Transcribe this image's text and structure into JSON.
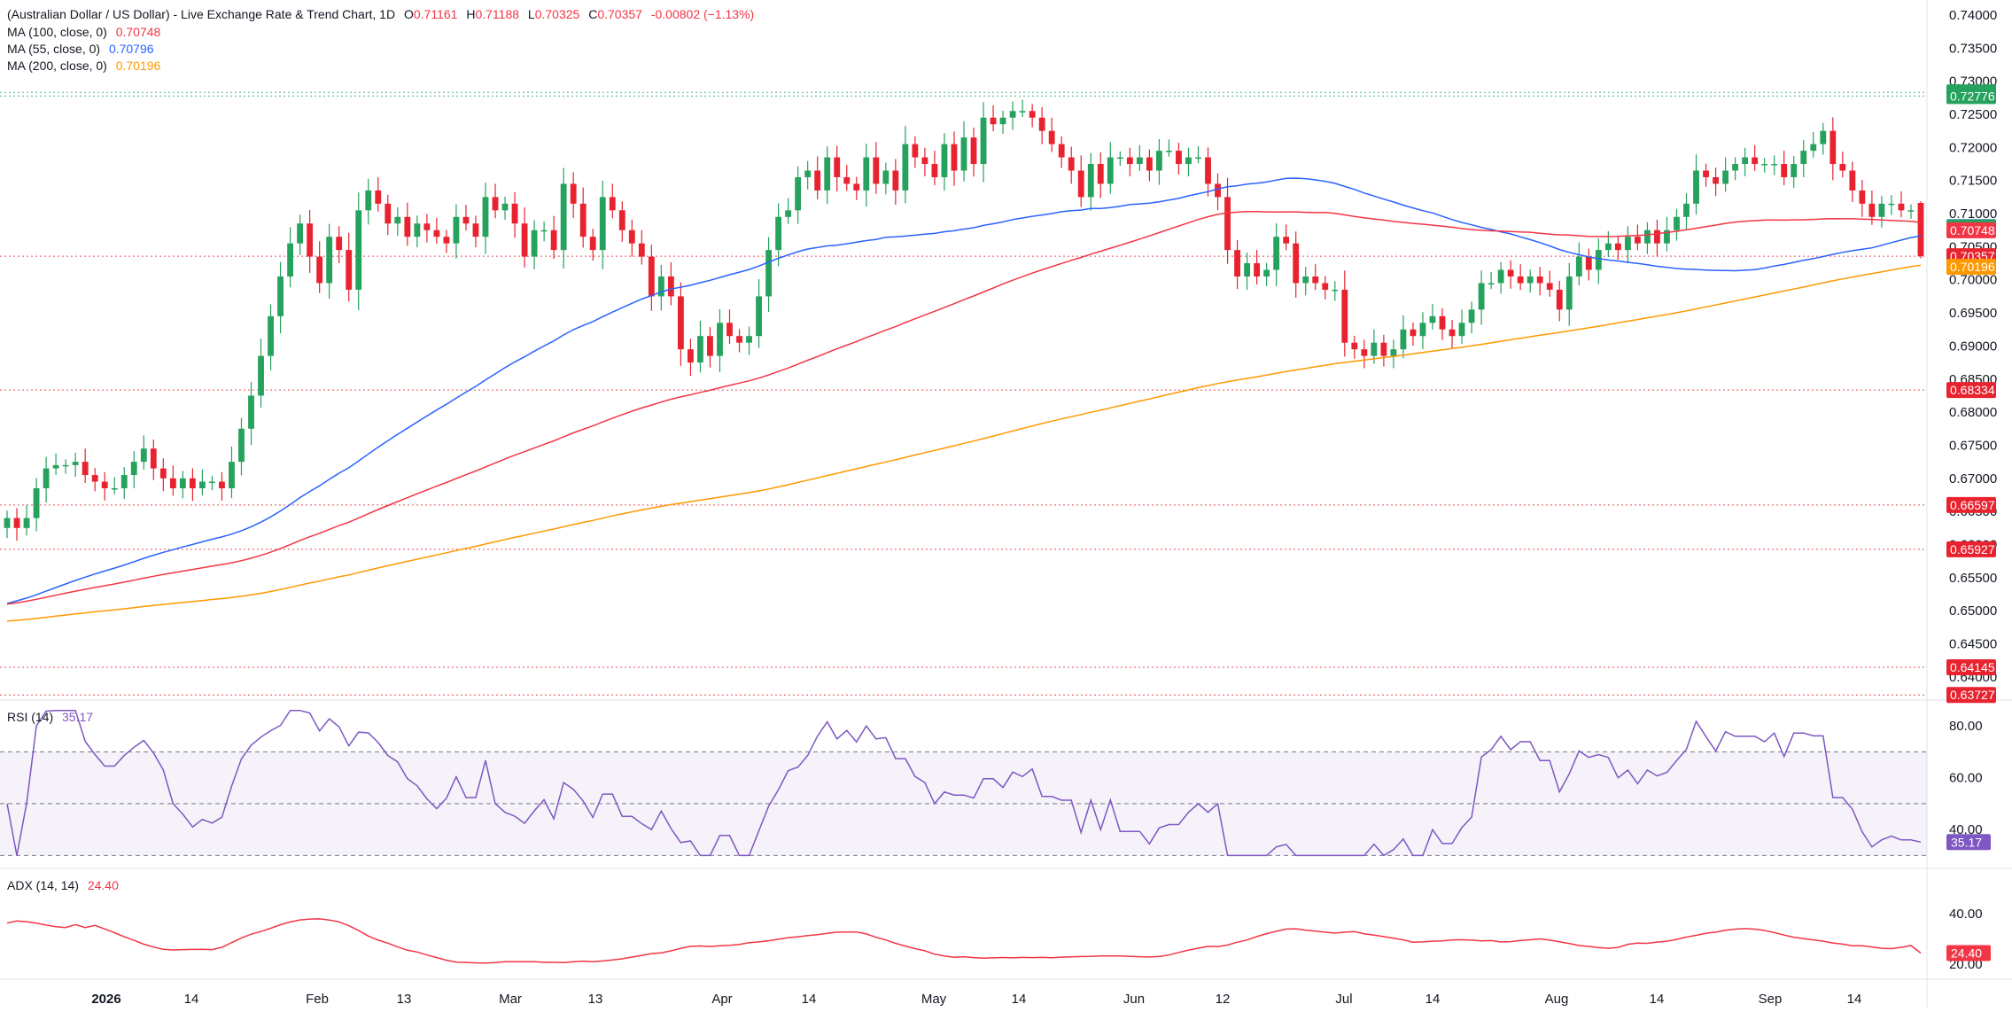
{
  "header": {
    "title": "(Australian Dollar / US Dollar) - Live Exchange Rate & Trend Chart, 1D",
    "open_label": "O",
    "open": "0.71161",
    "high_label": "H",
    "high": "0.71188",
    "low_label": "L",
    "low": "0.70325",
    "close_label": "C",
    "close": "0.70357",
    "change": "-0.00802 (−1.13%)",
    "indicators": [
      {
        "label": "MA (100, close, 0)",
        "value": "0.70748",
        "color": "#f23645"
      },
      {
        "label": "MA (55, close, 0)",
        "value": "0.70796",
        "color": "#2962ff"
      },
      {
        "label": "MA (200, close, 0)",
        "value": "0.70196",
        "color": "#ff9800"
      }
    ]
  },
  "colors": {
    "up": "#26a25e",
    "down": "#e8232f",
    "ma100": "#f23645",
    "ma55": "#2962ff",
    "ma200": "#ff9800",
    "rsi": "#7e57c2",
    "adx": "#f23645",
    "grid_level": "#e8232f",
    "green_level": "#26a25e"
  },
  "chart_data": [
    {
      "type": "candlestick",
      "title": "(Australian Dollar / US Dollar) - Live Exchange Rate & Trend Chart, 1D",
      "y_ticks": [
        "0.74000",
        "0.73500",
        "0.73000",
        "0.72500",
        "0.72000",
        "0.71500",
        "0.71000",
        "0.70500",
        "0.70000",
        "0.69500",
        "0.69000",
        "0.68500",
        "0.68000",
        "0.67500",
        "0.67000",
        "0.66500",
        "0.66000",
        "0.65500",
        "0.65000",
        "0.64500",
        "0.64000"
      ],
      "ylim": [
        0.6365,
        0.7404
      ],
      "x_ticks": [
        "2026",
        "14",
        "Feb",
        "13",
        "Mar",
        "13",
        "Apr",
        "14",
        "May",
        "14",
        "Jun",
        "12",
        "Jul",
        "14",
        "Aug",
        "14",
        "Sep",
        "14"
      ],
      "ohlc_close": [
        0.664,
        0.6625,
        0.664,
        0.6685,
        0.6715,
        0.672,
        0.672,
        0.6725,
        0.6705,
        0.6695,
        0.6685,
        0.6685,
        0.6705,
        0.6725,
        0.6745,
        0.6715,
        0.67,
        0.6685,
        0.67,
        0.6685,
        0.6695,
        0.6695,
        0.6685,
        0.6725,
        0.6775,
        0.6825,
        0.6885,
        0.6945,
        0.7005,
        0.7055,
        0.7085,
        0.7035,
        0.6995,
        0.7065,
        0.7045,
        0.6985,
        0.7105,
        0.7135,
        0.7115,
        0.7085,
        0.7095,
        0.7065,
        0.7085,
        0.7075,
        0.7065,
        0.7055,
        0.7095,
        0.7085,
        0.7065,
        0.7125,
        0.7105,
        0.7115,
        0.7085,
        0.7035,
        0.7075,
        0.7075,
        0.7045,
        0.7145,
        0.7115,
        0.7065,
        0.7045,
        0.7125,
        0.7105,
        0.7075,
        0.7055,
        0.7035,
        0.6975,
        0.7005,
        0.6975,
        0.6895,
        0.6875,
        0.6915,
        0.6885,
        0.6935,
        0.6915,
        0.6905,
        0.6915,
        0.6975,
        0.7045,
        0.7095,
        0.7105,
        0.7155,
        0.7165,
        0.7135,
        0.7185,
        0.7155,
        0.7145,
        0.7135,
        0.7185,
        0.7145,
        0.7165,
        0.7135,
        0.7205,
        0.7185,
        0.7175,
        0.7155,
        0.7205,
        0.7165,
        0.7215,
        0.7175,
        0.7245,
        0.7235,
        0.7245,
        0.7255,
        0.7255,
        0.7245,
        0.7225,
        0.7205,
        0.7185,
        0.7165,
        0.7125,
        0.7175,
        0.7145,
        0.7185,
        0.7185,
        0.7175,
        0.7185,
        0.7165,
        0.7195,
        0.7195,
        0.7175,
        0.7185,
        0.7185,
        0.7145,
        0.7125,
        0.7045,
        0.7005,
        0.7025,
        0.7005,
        0.7015,
        0.7065,
        0.7055,
        0.6995,
        0.7005,
        0.6995,
        0.6985,
        0.6985,
        0.6905,
        0.6895,
        0.6885,
        0.6905,
        0.6885,
        0.6895,
        0.6925,
        0.6915,
        0.6935,
        0.6945,
        0.6925,
        0.6915,
        0.6935,
        0.6955,
        0.6995,
        0.6995,
        0.7015,
        0.7005,
        0.6995,
        0.7005,
        0.6995,
        0.6985,
        0.6955,
        0.7005,
        0.7035,
        0.7015,
        0.7045,
        0.7055,
        0.7045,
        0.7065,
        0.7055,
        0.7075,
        0.7055,
        0.7075,
        0.7095,
        0.7115,
        0.7165,
        0.7155,
        0.7145,
        0.7165,
        0.7175,
        0.7185,
        0.7175,
        0.7175,
        0.7175,
        0.7155,
        0.7175,
        0.7195,
        0.7205,
        0.7225,
        0.7175,
        0.7165,
        0.7135,
        0.7115,
        0.7095,
        0.7115,
        0.7115,
        0.7105,
        0.7105,
        0.7036
      ],
      "last_close": 0.70357,
      "series": [
        {
          "name": "MA (100, close, 0)",
          "last": 0.70748
        },
        {
          "name": "MA (55, close, 0)",
          "last": 0.70796
        },
        {
          "name": "MA (200, close, 0)",
          "last": 0.70196
        }
      ],
      "price_labels": [
        {
          "text": "0.72831",
          "value": 0.72831,
          "color": "#26a25e"
        },
        {
          "text": "0.72776",
          "value": 0.72776,
          "color": "#26a25e"
        },
        {
          "text": "0.70796",
          "value": 0.70796,
          "color": "#2962ff"
        },
        {
          "text": "0.70791",
          "value": 0.70791,
          "color": "#26a25e"
        },
        {
          "text": "0.70748",
          "value": 0.70748,
          "color": "#f23645"
        },
        {
          "text": "0.70357",
          "value": 0.70357,
          "color": "#e8232f"
        },
        {
          "text": "0.70196",
          "value": 0.70196,
          "color": "#ff9800"
        },
        {
          "text": "0.68334",
          "value": 0.68334,
          "color": "#e8232f"
        },
        {
          "text": "0.66597",
          "value": 0.66597,
          "color": "#e8232f"
        },
        {
          "text": "0.65927",
          "value": 0.65927,
          "color": "#e8232f"
        },
        {
          "text": "0.64145",
          "value": 0.64145,
          "color": "#e8232f"
        },
        {
          "text": "0.63727",
          "value": 0.63727,
          "color": "#e8232f"
        }
      ]
    },
    {
      "type": "line",
      "title": "RSI (14)",
      "current": "35.17",
      "y_ticks": [
        "80.00",
        "60.00",
        "40.00"
      ],
      "bands": [
        30,
        50,
        70
      ],
      "ylim": [
        25,
        90
      ]
    },
    {
      "type": "line",
      "title": "ADX (14, 14)",
      "current": "24.40",
      "y_ticks": [
        "40.00",
        "20.00"
      ],
      "ylim": [
        14,
        58
      ]
    }
  ]
}
